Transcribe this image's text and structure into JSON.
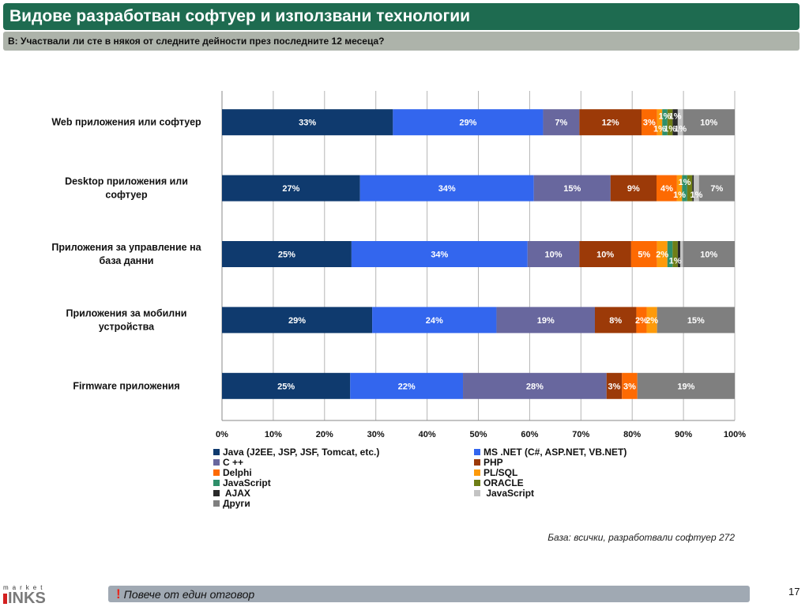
{
  "header": {
    "title": "Видове разработван софтуер и използвани технологии",
    "question": "В: Участвали ли сте в някоя от следните дейности през последните 12 месеца?"
  },
  "chart_data": {
    "type": "bar",
    "orientation": "horizontal",
    "stacked": "percent",
    "title": "",
    "xlabel": "",
    "ylabel": "",
    "xlim": [
      0,
      100
    ],
    "x_ticks": [
      "0%",
      "10%",
      "20%",
      "30%",
      "40%",
      "50%",
      "60%",
      "70%",
      "80%",
      "90%",
      "100%"
    ],
    "grid": true,
    "legend_position": "bottom",
    "categories": [
      "Web приложения или софтуер",
      "Desktop приложения или софтуер",
      "Приложения за управление на база данни",
      "Приложения за мобилни устройства",
      "Firmware приложения"
    ],
    "category_label_lines": [
      [
        "Web приложения или софтуер"
      ],
      [
        "Desktop приложения или",
        "софтуер"
      ],
      [
        "Приложения за управление на",
        "база данни"
      ],
      [
        "Приложения за мобилни",
        "устройства"
      ],
      [
        "Firmware приложения"
      ]
    ],
    "series": [
      {
        "name": "Java (J2EE, JSP, JSF, Tomcat, etc.)",
        "color": "#0f3a6e",
        "values": [
          33,
          27,
          25,
          29,
          25
        ],
        "labels": [
          "33%",
          "27%",
          "25%",
          "29%",
          "25%"
        ]
      },
      {
        "name": "MS .NET (C#, ASP.NET, VB.NET)",
        "color": "#3366ee",
        "values": [
          29,
          34,
          34,
          24,
          22
        ],
        "labels": [
          "29%",
          "34%",
          "34%",
          "24%",
          "22%"
        ]
      },
      {
        "name": "C ++",
        "color": "#68679e",
        "values": [
          7,
          15,
          10,
          19,
          28
        ],
        "labels": [
          "7%",
          "15%",
          "10%",
          "19%",
          "28%"
        ]
      },
      {
        "name": "PHP",
        "color": "#9c3a08",
        "values": [
          12,
          9,
          10,
          8,
          3
        ],
        "labels": [
          "12%",
          "9%",
          "10%",
          "8%",
          "3%"
        ]
      },
      {
        "name": "Delphi",
        "color": "#fd6a02",
        "values": [
          3,
          4,
          5,
          2,
          3
        ],
        "labels": [
          "3%",
          "4%",
          "5%",
          "2%",
          "3%"
        ]
      },
      {
        "name": "PL/SQL",
        "color": "#fd9a0a",
        "values": [
          1,
          1,
          2,
          2,
          0
        ],
        "labels": [
          "1%",
          "1%",
          "2%",
          "2%",
          ""
        ]
      },
      {
        "name": "JavaScript",
        "color": "#2e8f6a",
        "values": [
          1,
          1,
          1,
          0,
          0
        ],
        "labels": [
          "1%",
          "1%",
          "",
          "",
          ""
        ]
      },
      {
        "name": "ORACLE",
        "color": "#6e7e16",
        "values": [
          1,
          1,
          1,
          0,
          0
        ],
        "labels": [
          "1%",
          "",
          "1%",
          "",
          ""
        ]
      },
      {
        "name": "AJAX",
        "color": "#2a2a2a",
        "values": [
          1,
          0.3,
          0.5,
          0,
          0
        ],
        "labels": [
          "1%",
          "",
          "",
          "",
          ""
        ]
      },
      {
        "name": "JavaScript",
        "color": "#c3c3c3",
        "values": [
          1,
          1,
          0.5,
          0,
          0
        ],
        "labels": [
          "1%",
          "1%",
          "",
          "",
          ""
        ]
      },
      {
        "name": "Други",
        "color": "#7f7f7f",
        "values": [
          10,
          7,
          10,
          15,
          19
        ],
        "labels": [
          "10%",
          "7%",
          "10%",
          "15%",
          "19%"
        ]
      }
    ]
  },
  "legend": {
    "items": [
      {
        "label": "Java (J2EE, JSP, JSF, Tomcat, etc.)",
        "color": "#0f3a6e"
      },
      {
        "label": "MS .NET (C#, ASP.NET, VB.NET)",
        "color": "#3366ee"
      },
      {
        "label": "C ++",
        "color": "#68679e"
      },
      {
        "label": "PHP",
        "color": "#9c3a08"
      },
      {
        "label": "Delphi",
        "color": "#fd6a02"
      },
      {
        "label": "PL/SQL",
        "color": "#fd9a0a"
      },
      {
        "label": "JavaScript",
        "color": "#2e8f6a"
      },
      {
        "label": "ORACLE",
        "color": "#6e7e16"
      },
      {
        "label": " AJAX",
        "color": "#2a2a2a"
      },
      {
        "label": " JavaScript",
        "color": "#c3c3c3"
      },
      {
        "label": "Други",
        "color": "#7f7f7f"
      }
    ]
  },
  "base_note": "База: всички, разработвали софтуер 272",
  "footer": {
    "exclamation": "!",
    "note": "Повече от един отговор",
    "page_number": "17"
  },
  "logo": {
    "top": "market",
    "main": "INKS"
  }
}
